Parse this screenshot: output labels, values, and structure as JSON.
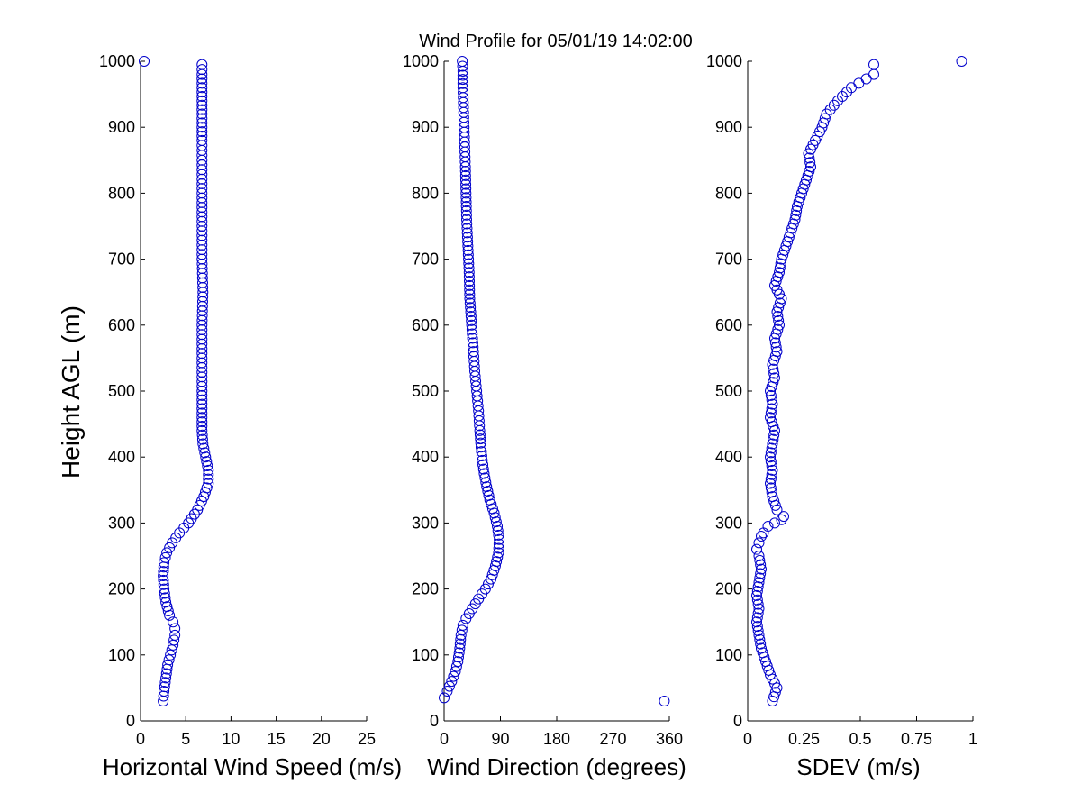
{
  "figure": {
    "title": "Wind Profile for  05/01/19 14:02:00",
    "ylabel": "Height AGL (m)"
  },
  "colors": {
    "marker": "#0000cc",
    "axis": "#000000",
    "background": "#ffffff"
  },
  "chart_data": [
    {
      "type": "scatter",
      "xlabel": "Horizontal Wind Speed (m/s)",
      "ylabel": "Height AGL (m)",
      "xlim": [
        0,
        25
      ],
      "ylim": [
        0,
        1000
      ],
      "xticks": [
        "0",
        "5",
        "10",
        "15",
        "20",
        "25"
      ],
      "yticks": [
        "0",
        "100",
        "200",
        "300",
        "400",
        "500",
        "600",
        "700",
        "800",
        "900",
        "1000"
      ],
      "grid": false,
      "profile_x": [
        2.5,
        2.6,
        2.8,
        3.0,
        3.3,
        3.6,
        3.8,
        3.8,
        3.6,
        3.2,
        2.8,
        2.6,
        2.5,
        2.6,
        2.9,
        3.5,
        4.3,
        5.3,
        6.3,
        7.0,
        7.5,
        7.5,
        7.2,
        6.9,
        6.8,
        6.8,
        6.8,
        6.8,
        6.8,
        6.9,
        6.8,
        6.8,
        6.8,
        6.8,
        6.8,
        6.8,
        6.8,
        6.8,
        6.8,
        6.8,
        6.8
      ],
      "profile_y": [
        30,
        45,
        65,
        85,
        100,
        115,
        130,
        140,
        150,
        160,
        180,
        200,
        220,
        240,
        255,
        270,
        285,
        300,
        320,
        340,
        360,
        380,
        400,
        420,
        440,
        460,
        500,
        550,
        600,
        650,
        700,
        750,
        800,
        850,
        880,
        900,
        920,
        940,
        960,
        980,
        995
      ],
      "extra_points": [
        {
          "x": 0.4,
          "y": 1000
        }
      ]
    },
    {
      "type": "scatter",
      "xlabel": "Wind Direction (degrees)",
      "ylabel": "",
      "xlim": [
        0,
        360
      ],
      "ylim": [
        0,
        1000
      ],
      "xticks": [
        "0",
        "90",
        "180",
        "270",
        "360"
      ],
      "yticks": [
        "0",
        "100",
        "200",
        "300",
        "400",
        "500",
        "600",
        "700",
        "800",
        "900",
        "1000"
      ],
      "grid": false,
      "profile_x": [
        0,
        5,
        12,
        18,
        22,
        25,
        27,
        30,
        35,
        45,
        55,
        66,
        75,
        82,
        87,
        88,
        85,
        80,
        73,
        68,
        64,
        61,
        59,
        57,
        55,
        52,
        49,
        47,
        44,
        41,
        40,
        38,
        36,
        35,
        34,
        33,
        32,
        31,
        30,
        30,
        29
      ],
      "profile_y": [
        35,
        45,
        60,
        75,
        90,
        110,
        130,
        145,
        155,
        170,
        185,
        200,
        215,
        235,
        255,
        275,
        295,
        315,
        335,
        355,
        375,
        395,
        415,
        440,
        470,
        500,
        530,
        560,
        600,
        640,
        680,
        720,
        760,
        800,
        840,
        870,
        900,
        930,
        960,
        985,
        1000
      ],
      "extra_points": [
        {
          "x": 352,
          "y": 30
        }
      ]
    },
    {
      "type": "scatter",
      "xlabel": "SDEV  (m/s)",
      "ylabel": "",
      "xlim": [
        0,
        1
      ],
      "ylim": [
        0,
        1000
      ],
      "xticks": [
        "0",
        "0.25",
        "0.5",
        "0.75",
        "1"
      ],
      "yticks": [
        "0",
        "100",
        "200",
        "300",
        "400",
        "500",
        "600",
        "700",
        "800",
        "900",
        "1000"
      ],
      "grid": false,
      "profile_x": [
        0.11,
        0.13,
        0.1,
        0.08,
        0.06,
        0.05,
        0.04,
        0.05,
        0.04,
        0.05,
        0.06,
        0.05,
        0.04,
        0.05,
        0.06,
        0.07,
        0.09,
        0.12,
        0.15,
        0.16,
        0.13,
        0.11,
        0.1,
        0.11,
        0.1,
        0.11,
        0.12,
        0.1,
        0.11,
        0.1,
        0.12,
        0.11,
        0.13,
        0.12,
        0.14,
        0.13,
        0.15,
        0.12,
        0.14,
        0.15,
        0.17,
        0.19,
        0.21,
        0.22,
        0.24,
        0.26,
        0.28,
        0.27,
        0.3,
        0.33,
        0.35,
        0.4,
        0.46,
        0.56
      ],
      "profile_y": [
        30,
        50,
        70,
        90,
        110,
        130,
        150,
        170,
        190,
        210,
        230,
        250,
        260,
        270,
        280,
        285,
        295,
        300,
        305,
        310,
        320,
        340,
        360,
        380,
        400,
        420,
        440,
        460,
        480,
        500,
        520,
        540,
        560,
        580,
        600,
        620,
        640,
        660,
        680,
        700,
        720,
        740,
        760,
        780,
        800,
        820,
        840,
        860,
        880,
        900,
        920,
        940,
        960,
        980
      ],
      "extra_points": [
        {
          "x": 0.95,
          "y": 1000
        },
        {
          "x": 0.56,
          "y": 995
        }
      ]
    }
  ]
}
